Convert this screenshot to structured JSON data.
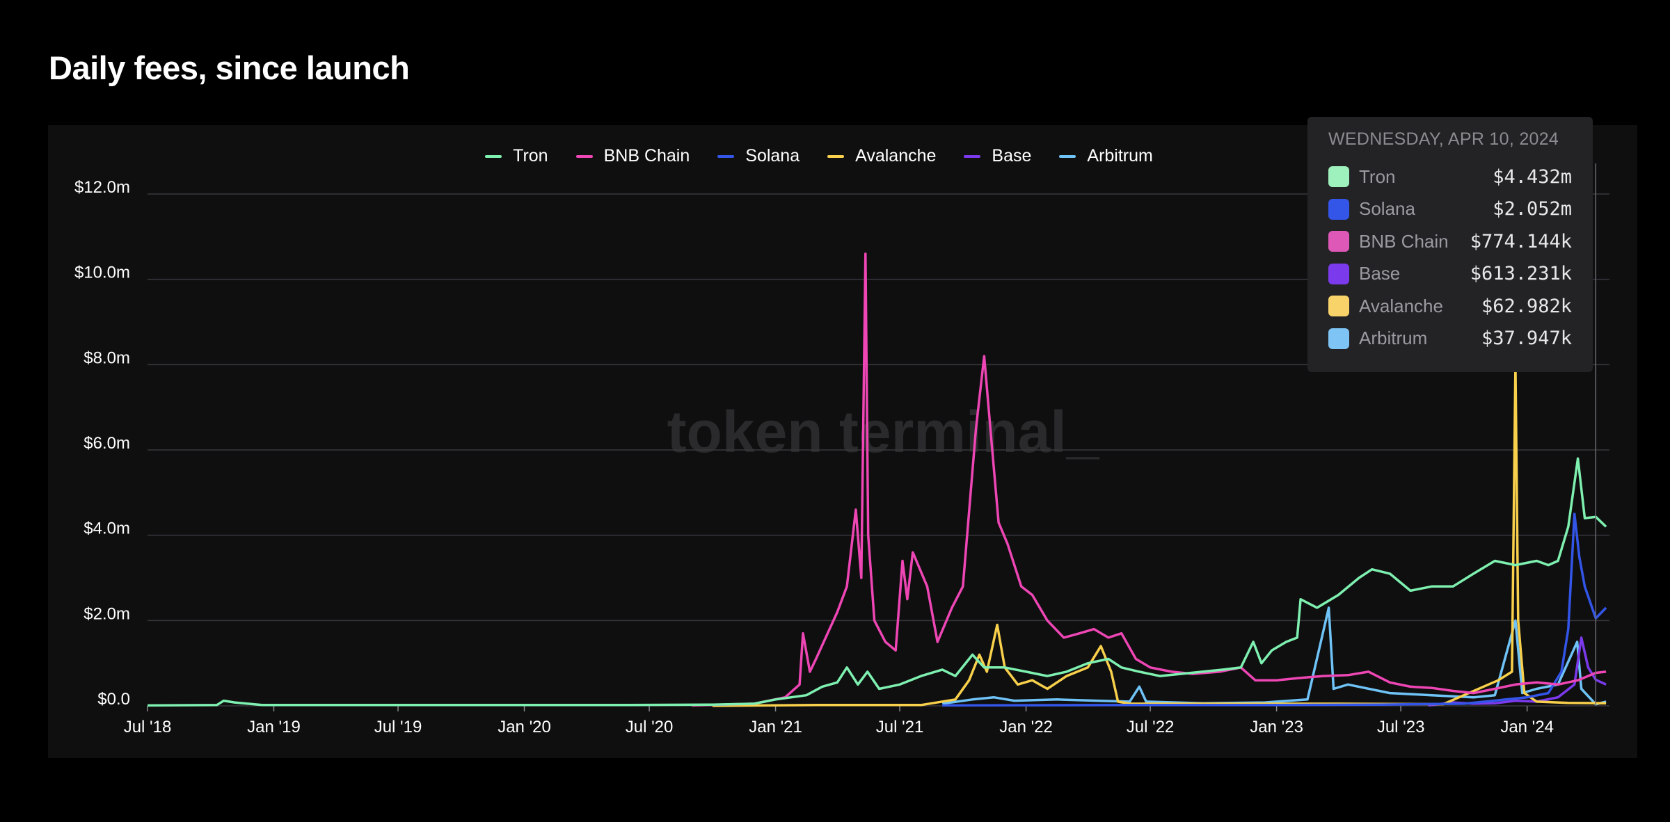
{
  "page": {
    "title": "Daily fees, since launch"
  },
  "watermark": "token terminal_",
  "chart_data": {
    "type": "line",
    "title": "Daily fees, since launch",
    "x_range": [
      "2018-07-01",
      "2024-04-30"
    ],
    "x_ticks": [
      {
        "label": "Jul '18",
        "date": "2018-07-01"
      },
      {
        "label": "Jan '19",
        "date": "2019-01-01"
      },
      {
        "label": "Jul '19",
        "date": "2019-07-01"
      },
      {
        "label": "Jan '20",
        "date": "2020-01-01"
      },
      {
        "label": "Jul '20",
        "date": "2020-07-01"
      },
      {
        "label": "Jan '21",
        "date": "2021-01-01"
      },
      {
        "label": "Jul '21",
        "date": "2021-07-01"
      },
      {
        "label": "Jan '22",
        "date": "2022-01-01"
      },
      {
        "label": "Jul '22",
        "date": "2022-07-01"
      },
      {
        "label": "Jan '23",
        "date": "2023-01-01"
      },
      {
        "label": "Jul '23",
        "date": "2023-07-01"
      },
      {
        "label": "Jan '24",
        "date": "2024-01-01"
      }
    ],
    "y_ticks": [
      {
        "label": "$0.0",
        "value": 0
      },
      {
        "label": "$2.0m",
        "value": 2
      },
      {
        "label": "$4.0m",
        "value": 4
      },
      {
        "label": "$6.0m",
        "value": 6
      },
      {
        "label": "$8.0m",
        "value": 8
      },
      {
        "label": "$10.0m",
        "value": 10
      },
      {
        "label": "$12.0m",
        "value": 12
      }
    ],
    "ylim": [
      0,
      12
    ],
    "y_unit": "USD millions",
    "grid": true,
    "legend_position": "top-center",
    "legend": [
      "Tron",
      "BNB Chain",
      "Solana",
      "Avalanche",
      "Base",
      "Arbitrum"
    ],
    "series": [
      {
        "name": "Tron",
        "color": "#7ef0b0",
        "points": [
          [
            "2018-07-01",
            0.01
          ],
          [
            "2018-10-10",
            0.02
          ],
          [
            "2018-10-20",
            0.12
          ],
          [
            "2018-11-05",
            0.08
          ],
          [
            "2018-12-15",
            0.02
          ],
          [
            "2019-06-01",
            0.02
          ],
          [
            "2019-12-01",
            0.02
          ],
          [
            "2020-06-01",
            0.02
          ],
          [
            "2020-10-01",
            0.03
          ],
          [
            "2020-12-01",
            0.05
          ],
          [
            "2021-01-01",
            0.15
          ],
          [
            "2021-02-15",
            0.25
          ],
          [
            "2021-03-10",
            0.45
          ],
          [
            "2021-04-01",
            0.55
          ],
          [
            "2021-04-15",
            0.9
          ],
          [
            "2021-05-01",
            0.5
          ],
          [
            "2021-05-15",
            0.8
          ],
          [
            "2021-06-01",
            0.4
          ],
          [
            "2021-07-01",
            0.5
          ],
          [
            "2021-08-01",
            0.7
          ],
          [
            "2021-09-01",
            0.85
          ],
          [
            "2021-09-20",
            0.7
          ],
          [
            "2021-10-15",
            1.2
          ],
          [
            "2021-11-01",
            0.9
          ],
          [
            "2021-12-01",
            0.9
          ],
          [
            "2022-01-01",
            0.8
          ],
          [
            "2022-02-01",
            0.7
          ],
          [
            "2022-03-01",
            0.8
          ],
          [
            "2022-04-01",
            1.0
          ],
          [
            "2022-05-01",
            1.1
          ],
          [
            "2022-05-20",
            0.9
          ],
          [
            "2022-06-15",
            0.8
          ],
          [
            "2022-07-15",
            0.7
          ],
          [
            "2022-08-15",
            0.75
          ],
          [
            "2022-09-15",
            0.8
          ],
          [
            "2022-10-15",
            0.85
          ],
          [
            "2022-11-10",
            0.9
          ],
          [
            "2022-11-28",
            1.5
          ],
          [
            "2022-12-10",
            1.0
          ],
          [
            "2022-12-25",
            1.3
          ],
          [
            "2023-01-15",
            1.5
          ],
          [
            "2023-01-31",
            1.6
          ],
          [
            "2023-02-05",
            2.5
          ],
          [
            "2023-03-01",
            2.3
          ],
          [
            "2023-04-01",
            2.6
          ],
          [
            "2023-05-01",
            3.0
          ],
          [
            "2023-05-20",
            3.2
          ],
          [
            "2023-06-15",
            3.1
          ],
          [
            "2023-07-15",
            2.7
          ],
          [
            "2023-08-15",
            2.8
          ],
          [
            "2023-09-15",
            2.8
          ],
          [
            "2023-10-15",
            3.1
          ],
          [
            "2023-11-15",
            3.4
          ],
          [
            "2023-12-15",
            3.3
          ],
          [
            "2024-01-15",
            3.4
          ],
          [
            "2024-02-01",
            3.3
          ],
          [
            "2024-02-15",
            3.4
          ],
          [
            "2024-03-01",
            4.2
          ],
          [
            "2024-03-15",
            5.8
          ],
          [
            "2024-03-25",
            4.4
          ],
          [
            "2024-04-10",
            4.432
          ],
          [
            "2024-04-25",
            4.2
          ]
        ]
      },
      {
        "name": "BNB Chain",
        "color": "#ee46b4",
        "points": [
          [
            "2020-09-01",
            0.01
          ],
          [
            "2020-12-01",
            0.05
          ],
          [
            "2021-01-15",
            0.2
          ],
          [
            "2021-02-05",
            0.5
          ],
          [
            "2021-02-10",
            1.7
          ],
          [
            "2021-02-20",
            0.8
          ],
          [
            "2021-03-01",
            1.1
          ],
          [
            "2021-04-01",
            2.2
          ],
          [
            "2021-04-15",
            2.8
          ],
          [
            "2021-04-28",
            4.6
          ],
          [
            "2021-05-06",
            3.0
          ],
          [
            "2021-05-12",
            10.6
          ],
          [
            "2021-05-16",
            4.0
          ],
          [
            "2021-05-25",
            2.0
          ],
          [
            "2021-06-10",
            1.5
          ],
          [
            "2021-06-25",
            1.3
          ],
          [
            "2021-07-05",
            3.4
          ],
          [
            "2021-07-12",
            2.5
          ],
          [
            "2021-07-20",
            3.6
          ],
          [
            "2021-08-10",
            2.8
          ],
          [
            "2021-08-25",
            1.5
          ],
          [
            "2021-09-15",
            2.3
          ],
          [
            "2021-10-01",
            2.8
          ],
          [
            "2021-10-20",
            6.5
          ],
          [
            "2021-11-01",
            8.2
          ],
          [
            "2021-11-10",
            6.5
          ],
          [
            "2021-11-22",
            4.3
          ],
          [
            "2021-12-05",
            3.8
          ],
          [
            "2021-12-25",
            2.8
          ],
          [
            "2022-01-10",
            2.6
          ],
          [
            "2022-02-01",
            2.0
          ],
          [
            "2022-02-25",
            1.6
          ],
          [
            "2022-03-20",
            1.7
          ],
          [
            "2022-04-10",
            1.8
          ],
          [
            "2022-05-01",
            1.6
          ],
          [
            "2022-05-20",
            1.7
          ],
          [
            "2022-06-10",
            1.1
          ],
          [
            "2022-07-01",
            0.9
          ],
          [
            "2022-08-01",
            0.8
          ],
          [
            "2022-09-01",
            0.75
          ],
          [
            "2022-10-10",
            0.8
          ],
          [
            "2022-11-10",
            0.9
          ],
          [
            "2022-12-01",
            0.6
          ],
          [
            "2023-01-01",
            0.6
          ],
          [
            "2023-02-01",
            0.65
          ],
          [
            "2023-03-10",
            0.7
          ],
          [
            "2023-04-15",
            0.72
          ],
          [
            "2023-05-15",
            0.8
          ],
          [
            "2023-06-15",
            0.55
          ],
          [
            "2023-07-15",
            0.45
          ],
          [
            "2023-08-15",
            0.42
          ],
          [
            "2023-09-15",
            0.35
          ],
          [
            "2023-10-15",
            0.3
          ],
          [
            "2023-11-15",
            0.4
          ],
          [
            "2023-12-15",
            0.5
          ],
          [
            "2024-01-15",
            0.55
          ],
          [
            "2024-02-15",
            0.5
          ],
          [
            "2024-03-15",
            0.6
          ],
          [
            "2024-04-10",
            0.774144
          ],
          [
            "2024-04-25",
            0.8
          ]
        ]
      },
      {
        "name": "Solana",
        "color": "#3355e8",
        "points": [
          [
            "2021-09-01",
            0.01
          ],
          [
            "2022-06-01",
            0.02
          ],
          [
            "2023-01-01",
            0.02
          ],
          [
            "2023-06-01",
            0.03
          ],
          [
            "2023-10-01",
            0.05
          ],
          [
            "2023-12-01",
            0.15
          ],
          [
            "2024-01-01",
            0.2
          ],
          [
            "2024-02-01",
            0.3
          ],
          [
            "2024-02-20",
            0.8
          ],
          [
            "2024-03-01",
            1.8
          ],
          [
            "2024-03-10",
            4.5
          ],
          [
            "2024-03-17",
            3.5
          ],
          [
            "2024-03-25",
            2.8
          ],
          [
            "2024-04-10",
            2.052
          ],
          [
            "2024-04-25",
            2.3
          ]
        ]
      },
      {
        "name": "Avalanche",
        "color": "#f8d04b",
        "points": [
          [
            "2020-10-01",
            0.0
          ],
          [
            "2021-03-01",
            0.02
          ],
          [
            "2021-08-01",
            0.02
          ],
          [
            "2021-09-20",
            0.15
          ],
          [
            "2021-10-10",
            0.6
          ],
          [
            "2021-10-25",
            1.2
          ],
          [
            "2021-11-05",
            0.8
          ],
          [
            "2021-11-20",
            1.9
          ],
          [
            "2021-12-01",
            0.9
          ],
          [
            "2021-12-20",
            0.5
          ],
          [
            "2022-01-10",
            0.6
          ],
          [
            "2022-02-01",
            0.4
          ],
          [
            "2022-03-01",
            0.7
          ],
          [
            "2022-04-01",
            0.9
          ],
          [
            "2022-04-20",
            1.4
          ],
          [
            "2022-05-05",
            0.8
          ],
          [
            "2022-05-15",
            0.1
          ],
          [
            "2022-06-01",
            0.05
          ],
          [
            "2022-10-01",
            0.05
          ],
          [
            "2023-04-01",
            0.05
          ],
          [
            "2023-09-01",
            0.04
          ],
          [
            "2023-11-20",
            0.6
          ],
          [
            "2023-12-10",
            0.8
          ],
          [
            "2023-12-15",
            8.0
          ],
          [
            "2023-12-19",
            2.0
          ],
          [
            "2023-12-28",
            0.3
          ],
          [
            "2024-01-15",
            0.1
          ],
          [
            "2024-03-01",
            0.07
          ],
          [
            "2024-04-10",
            0.062982
          ],
          [
            "2024-04-25",
            0.06
          ]
        ]
      },
      {
        "name": "Base",
        "color": "#7c3aed",
        "points": [
          [
            "2023-08-10",
            0.01
          ],
          [
            "2023-09-15",
            0.08
          ],
          [
            "2023-10-15",
            0.05
          ],
          [
            "2023-11-15",
            0.06
          ],
          [
            "2023-12-15",
            0.12
          ],
          [
            "2024-01-15",
            0.1
          ],
          [
            "2024-02-15",
            0.2
          ],
          [
            "2024-03-10",
            0.5
          ],
          [
            "2024-03-20",
            1.6
          ],
          [
            "2024-03-30",
            0.9
          ],
          [
            "2024-04-10",
            0.613231
          ],
          [
            "2024-04-25",
            0.5
          ]
        ]
      },
      {
        "name": "Arbitrum",
        "color": "#6fc3f7",
        "points": [
          [
            "2021-09-01",
            0.05
          ],
          [
            "2021-10-15",
            0.15
          ],
          [
            "2021-11-15",
            0.2
          ],
          [
            "2021-12-15",
            0.12
          ],
          [
            "2022-02-15",
            0.15
          ],
          [
            "2022-04-15",
            0.12
          ],
          [
            "2022-06-01",
            0.1
          ],
          [
            "2022-06-15",
            0.45
          ],
          [
            "2022-06-25",
            0.1
          ],
          [
            "2022-09-15",
            0.06
          ],
          [
            "2022-12-15",
            0.08
          ],
          [
            "2023-02-15",
            0.15
          ],
          [
            "2023-03-18",
            2.3
          ],
          [
            "2023-03-25",
            0.4
          ],
          [
            "2023-04-15",
            0.5
          ],
          [
            "2023-06-15",
            0.3
          ],
          [
            "2023-08-15",
            0.25
          ],
          [
            "2023-10-15",
            0.2
          ],
          [
            "2023-11-15",
            0.25
          ],
          [
            "2023-12-15",
            2.0
          ],
          [
            "2023-12-25",
            0.3
          ],
          [
            "2024-01-15",
            0.4
          ],
          [
            "2024-02-15",
            0.5
          ],
          [
            "2024-03-14",
            1.5
          ],
          [
            "2024-03-20",
            0.4
          ],
          [
            "2024-04-10",
            0.037947
          ],
          [
            "2024-04-25",
            0.1
          ]
        ]
      }
    ],
    "hover_date": "2024-04-10"
  },
  "tooltip": {
    "date": "WEDNESDAY, APR 10, 2024",
    "rows": [
      {
        "name": "Tron",
        "value": "$4.432m",
        "color": "#9ef0bd"
      },
      {
        "name": "Solana",
        "value": "$2.052m",
        "color": "#3355e8"
      },
      {
        "name": "BNB Chain",
        "value": "$774.144k",
        "color": "#de58b8"
      },
      {
        "name": "Base",
        "value": "$613.231k",
        "color": "#7c3aed"
      },
      {
        "name": "Avalanche",
        "value": "$62.982k",
        "color": "#f8d36a"
      },
      {
        "name": "Arbitrum",
        "value": "$37.947k",
        "color": "#7ec4f5"
      }
    ]
  },
  "colors": {
    "background": "#000000",
    "panel": "#0f0f10",
    "grid": "#333338",
    "tooltip_bg": "#232326"
  }
}
